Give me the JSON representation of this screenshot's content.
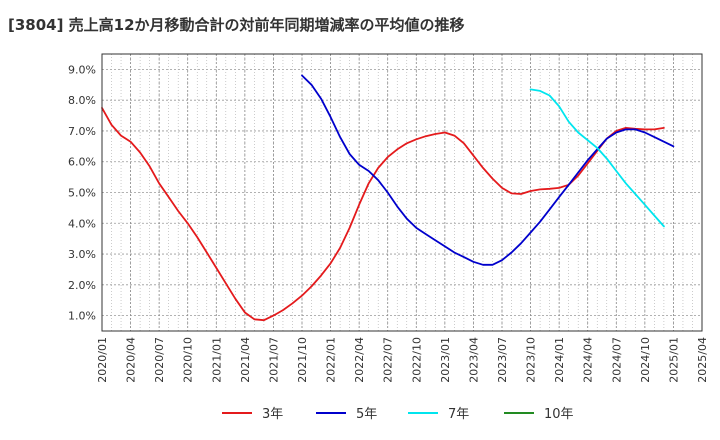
{
  "chart_data": {
    "type": "line",
    "title": "[3804]  売上高12か月移動合計の対前年同期増減率の平均値の推移",
    "xlabel": "",
    "ylabel": "",
    "ylim": [
      0.5,
      9.5
    ],
    "yticks": [
      1.0,
      2.0,
      3.0,
      4.0,
      5.0,
      6.0,
      7.0,
      8.0,
      9.0
    ],
    "ytick_labels": [
      "1.0%",
      "2.0%",
      "3.0%",
      "4.0%",
      "5.0%",
      "6.0%",
      "7.0%",
      "8.0%",
      "9.0%"
    ],
    "xrange_months": [
      0,
      63
    ],
    "xtick_labels": [
      "2020/01",
      "2020/04",
      "2020/07",
      "2020/10",
      "2021/01",
      "2021/04",
      "2021/07",
      "2021/10",
      "2022/01",
      "2022/04",
      "2022/07",
      "2022/10",
      "2023/01",
      "2023/04",
      "2023/07",
      "2023/10",
      "2024/01",
      "2024/04",
      "2024/07",
      "2024/10",
      "2025/01",
      "2025/04"
    ],
    "grid": true,
    "legend_position": "bottom",
    "series": [
      {
        "name": "3年",
        "color": "#e41a1c",
        "start_month": 0,
        "values": [
          7.75,
          7.2,
          6.85,
          6.65,
          6.3,
          5.85,
          5.3,
          4.85,
          4.4,
          4.0,
          3.55,
          3.05,
          2.55,
          2.05,
          1.55,
          1.1,
          0.88,
          0.85,
          1.0,
          1.18,
          1.4,
          1.65,
          1.95,
          2.3,
          2.7,
          3.2,
          3.85,
          4.6,
          5.3,
          5.8,
          6.15,
          6.4,
          6.6,
          6.73,
          6.83,
          6.9,
          6.95,
          6.85,
          6.6,
          6.2,
          5.8,
          5.45,
          5.15,
          4.97,
          4.95,
          5.05,
          5.1,
          5.12,
          5.15,
          5.25,
          5.55,
          5.95,
          6.35,
          6.75,
          7.0,
          7.1,
          7.07,
          7.05,
          7.05,
          7.1
        ]
      },
      {
        "name": "5年",
        "color": "#0000cc",
        "start_month": 21,
        "values": [
          8.8,
          8.5,
          8.05,
          7.45,
          6.8,
          6.25,
          5.9,
          5.7,
          5.4,
          5.0,
          4.55,
          4.15,
          3.85,
          3.65,
          3.45,
          3.25,
          3.05,
          2.9,
          2.75,
          2.65,
          2.65,
          2.8,
          3.05,
          3.35,
          3.7,
          4.05,
          4.45,
          4.85,
          5.25,
          5.65,
          6.05,
          6.4,
          6.75,
          6.95,
          7.05,
          7.05,
          6.95,
          6.8,
          6.65,
          6.5
        ]
      },
      {
        "name": "7年",
        "color": "#00e5ee",
        "start_month": 45,
        "values": [
          8.35,
          8.3,
          8.15,
          7.8,
          7.3,
          6.95,
          6.7,
          6.45,
          6.1,
          5.7,
          5.3,
          4.95,
          4.6,
          4.25,
          3.9
        ]
      },
      {
        "name": "10年",
        "color": "#228b22",
        "start_month": 0,
        "values": []
      }
    ]
  }
}
